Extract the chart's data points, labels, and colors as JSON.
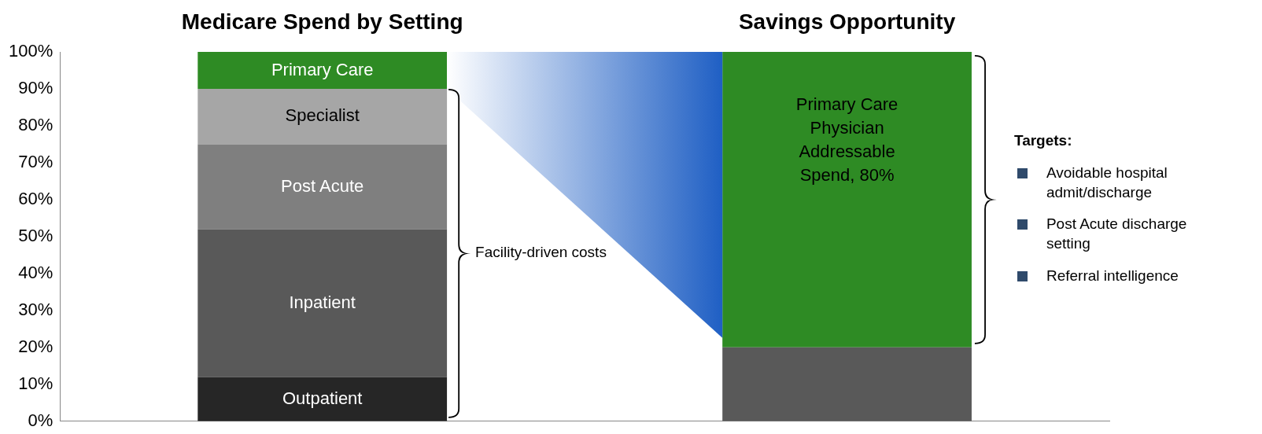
{
  "chart_data": {
    "type": "bar",
    "title": "Medicare Spend by Setting",
    "categories": [
      null,
      null
    ],
    "stacked": true,
    "ylim": [
      0,
      100
    ],
    "yticks": [
      {
        "value": 0,
        "label": "0%"
      },
      {
        "value": 10,
        "label": "10%"
      },
      {
        "value": 20,
        "label": "20%"
      },
      {
        "value": 30,
        "label": "30%"
      },
      {
        "value": 40,
        "label": "40%"
      },
      {
        "value": 50,
        "label": "50%"
      },
      {
        "value": 60,
        "label": "60%"
      },
      {
        "value": 70,
        "label": "70%"
      },
      {
        "value": 80,
        "label": "80%"
      },
      {
        "value": 90,
        "label": "90%"
      },
      {
        "value": 100,
        "label": "100%"
      }
    ],
    "series": [
      {
        "name": "Outpatient",
        "color": "#262626",
        "values": [
          12,
          null
        ]
      },
      {
        "name": "Inpatient",
        "color": "#595959",
        "values": [
          40,
          null
        ]
      },
      {
        "name": "Post Acute",
        "color": "#7f7f7f",
        "values": [
          23,
          null
        ]
      },
      {
        "name": "Specialist",
        "color": "#a6a6a6",
        "values": [
          15,
          null
        ]
      },
      {
        "name": "Primary Care",
        "color": "#2e8b24",
        "values": [
          10,
          null
        ]
      },
      {
        "color": "#595959",
        "values": [
          null,
          20
        ]
      },
      {
        "color": "#2e8b24",
        "values": [
          null,
          80
        ],
        "value_labels": [
          null,
          "Primary Care Physician Addressable Spend, 80%"
        ]
      }
    ],
    "annotations": [
      "Savings Opportunity",
      "Facility-driven costs",
      "Targets:",
      "Avoidable hospital admit/discharge",
      "Post Acute discharge setting",
      "Referral intelligence"
    ]
  }
}
